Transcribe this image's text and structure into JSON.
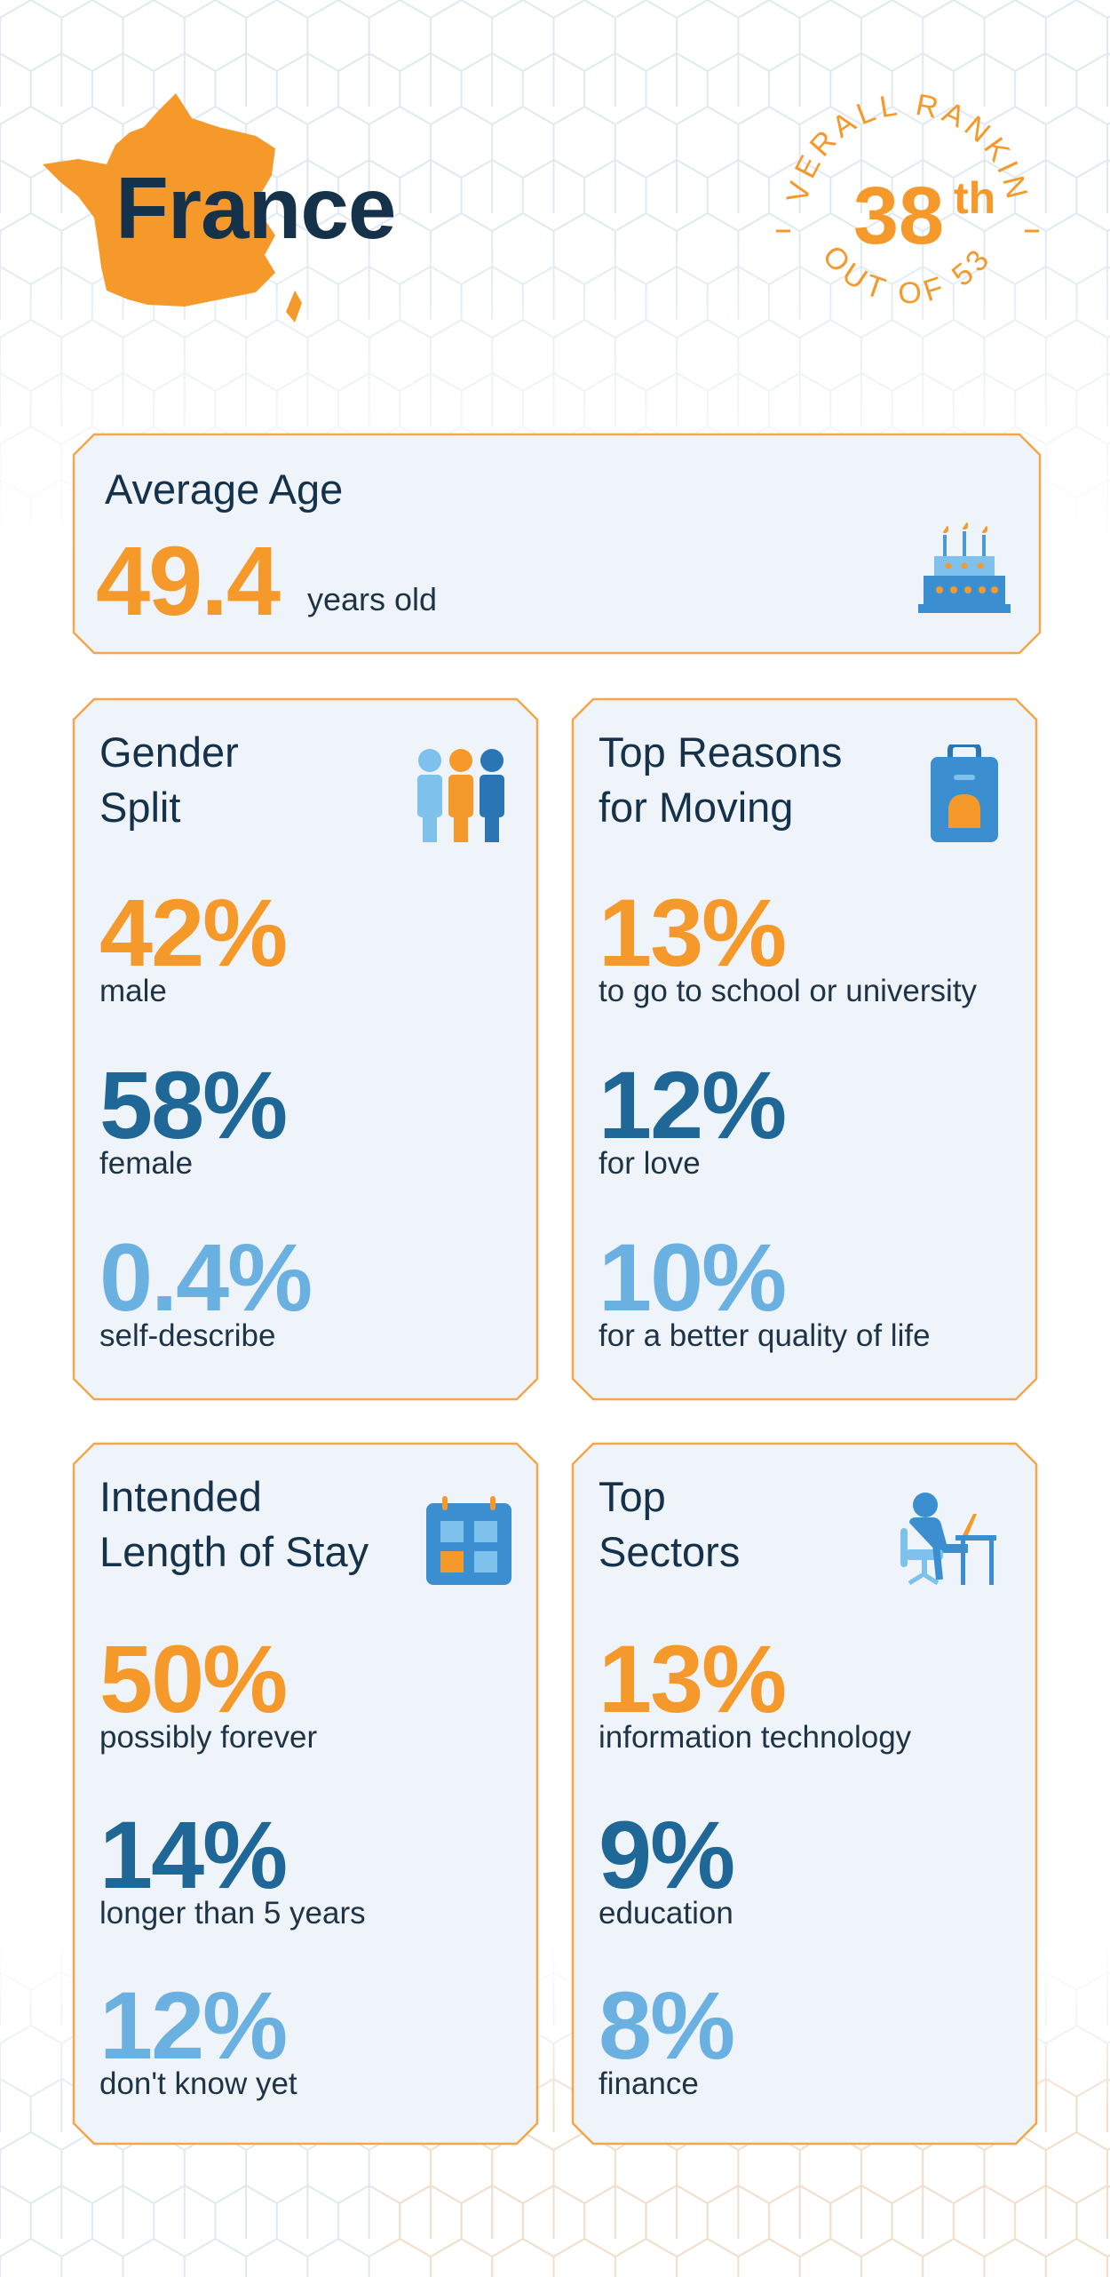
{
  "header": {
    "country": "France",
    "ranking_top": "OVERALL RANKING",
    "ranking_value": "38",
    "ranking_suffix": "th",
    "ranking_bottom": "OUT OF 53"
  },
  "colors": {
    "orange": "#f5992a",
    "dark_blue": "#1f6797",
    "light_blue": "#6ab0e0",
    "navy_text": "#16324a",
    "card_bg": "#eef4fa",
    "card_border": "#f4a64a"
  },
  "average_age": {
    "title": "Average Age",
    "value": "49.4",
    "unit": "years old",
    "icon": "birthday-cake-icon"
  },
  "gender_split": {
    "title_line1": "Gender",
    "title_line2": "Split",
    "icon": "people-icon",
    "stats": [
      {
        "value": "42%",
        "label": "male"
      },
      {
        "value": "58%",
        "label": "female"
      },
      {
        "value": "0.4%",
        "label": "self-describe"
      }
    ]
  },
  "top_reasons": {
    "title_line1": "Top Reasons",
    "title_line2": "for Moving",
    "icon": "suitcase-icon",
    "stats": [
      {
        "value": "13%",
        "label": "to go to school or university"
      },
      {
        "value": "12%",
        "label": "for love"
      },
      {
        "value": "10%",
        "label": "for a better quality of life"
      }
    ]
  },
  "length_of_stay": {
    "title_line1": "Intended",
    "title_line2": "Length of Stay",
    "icon": "calendar-icon",
    "stats": [
      {
        "value": "50%",
        "label": "possibly forever"
      },
      {
        "value": "14%",
        "label": "longer than 5 years"
      },
      {
        "value": "12%",
        "label": "don't know yet"
      }
    ]
  },
  "top_sectors": {
    "title_line1": "Top",
    "title_line2": "Sectors",
    "icon": "person-at-desk-icon",
    "stats": [
      {
        "value": "13%",
        "label": "information technology"
      },
      {
        "value": "9%",
        "label": "education"
      },
      {
        "value": "8%",
        "label": "finance"
      }
    ]
  }
}
